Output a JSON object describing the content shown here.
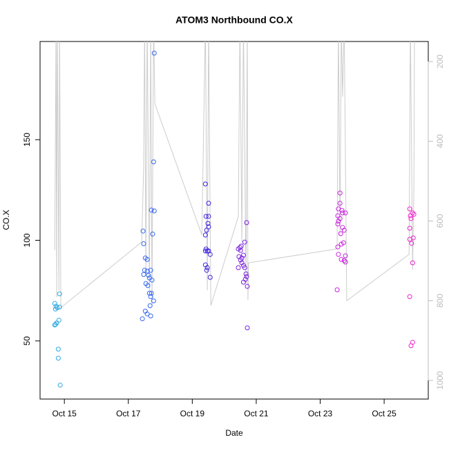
{
  "chart_data": {
    "type": "scatter",
    "title": "ATOM3 Northbound CO.X",
    "x_label": "Date",
    "y_label": "CO.X",
    "xlim": [
      14.24,
      26.38
    ],
    "xticks": [
      {
        "value": 15,
        "label": "Oct 15"
      },
      {
        "value": 17,
        "label": "Oct 17"
      },
      {
        "value": 19,
        "label": "Oct 19"
      },
      {
        "value": 21,
        "label": "Oct 21"
      },
      {
        "value": 23,
        "label": "Oct 23"
      },
      {
        "value": 25,
        "label": "Oct 25"
      }
    ],
    "ylim": [
      21.1,
      198.8
    ],
    "yticks": [
      50,
      100,
      150
    ],
    "y2lim": [
      1046.8,
      149.7
    ],
    "y2ticks": [
      200,
      400,
      600,
      800,
      1000
    ],
    "series": [
      {
        "color": "#2aa8e0",
        "x": [
          14.7,
          14.74,
          14.72,
          14.78,
          14.85,
          14.85,
          14.83,
          14.76,
          14.72,
          14.7,
          14.81,
          14.81,
          14.87
        ],
        "values": [
          68.6,
          67.2,
          65.8,
          66.5,
          66.8,
          73.4,
          60.3,
          58.9,
          58.2,
          57.9,
          45.9,
          41.4,
          28.0
        ]
      },
      {
        "color": "#3366ee",
        "x": [
          17.81,
          17.79,
          17.72,
          17.81,
          17.76,
          17.46,
          17.48,
          17.53,
          17.59,
          17.51,
          17.59,
          17.7,
          17.48,
          17.63,
          17.66,
          17.74,
          17.55,
          17.61,
          17.66,
          17.72,
          17.7,
          17.79,
          17.68,
          17.53,
          17.59,
          17.7,
          17.44
        ],
        "values": [
          193.0,
          139.0,
          115.0,
          114.6,
          103.1,
          104.6,
          98.3,
          91.2,
          90.5,
          85.1,
          84.7,
          85.1,
          83.0,
          82.6,
          81.3,
          80.2,
          78.5,
          77.5,
          73.7,
          73.7,
          72.0,
          69.9,
          67.5,
          64.8,
          63.4,
          62.4,
          61.0
        ]
      },
      {
        "color": "#3a22dd",
        "x": [
          19.41,
          19.51,
          19.43,
          19.51,
          19.49,
          19.51,
          19.45,
          19.41,
          19.43,
          19.41,
          19.47,
          19.51,
          19.56,
          19.41,
          19.47,
          19.45,
          19.56
        ],
        "values": [
          128.0,
          118.4,
          111.9,
          111.9,
          108.4,
          106.7,
          105.0,
          102.6,
          95.7,
          94.7,
          94.7,
          94.7,
          93.0,
          87.8,
          86.4,
          85.1,
          81.6
        ]
      },
      {
        "color": "#7a22dd",
        "x": [
          20.7,
          20.64,
          20.53,
          20.49,
          20.44,
          20.51,
          20.6,
          20.46,
          20.55,
          20.51,
          20.55,
          20.6,
          20.64,
          20.44,
          20.68,
          20.7,
          20.66,
          20.6,
          20.72,
          20.72
        ],
        "values": [
          108.8,
          99.1,
          97.1,
          96.4,
          95.7,
          95.0,
          92.6,
          91.9,
          91.2,
          90.2,
          88.8,
          87.5,
          86.4,
          86.4,
          83.3,
          82.0,
          80.6,
          79.2,
          77.1,
          56.5
        ]
      },
      {
        "color": "#c822dd",
        "x": [
          23.62,
          23.62,
          23.57,
          23.68,
          23.79,
          23.7,
          23.55,
          23.62,
          23.57,
          23.55,
          23.7,
          23.75,
          23.64,
          23.73,
          23.66,
          23.55,
          23.57,
          23.79,
          23.66,
          23.75,
          23.79,
          23.53
        ],
        "values": [
          123.5,
          118.4,
          115.6,
          114.9,
          113.6,
          113.6,
          112.2,
          110.8,
          109.5,
          108.1,
          106.4,
          105.0,
          103.3,
          98.8,
          98.1,
          96.7,
          93.0,
          92.3,
          90.5,
          89.9,
          89.2,
          75.4
        ]
      },
      {
        "color": "#ee22cc",
        "x": [
          25.8,
          25.89,
          25.82,
          25.93,
          25.84,
          25.8,
          25.91,
          25.8,
          25.86,
          25.89,
          25.8,
          25.89,
          25.84
        ],
        "values": [
          115.6,
          113.6,
          112.2,
          112.9,
          110.8,
          106.0,
          101.2,
          100.5,
          98.5,
          88.8,
          72.0,
          49.3,
          47.6
        ]
      },
      {
        "type": "line",
        "axis": "y2",
        "color": "#cccccc",
        "x": [
          14.7,
          14.74,
          14.76,
          14.78,
          14.83,
          14.85,
          14.89,
          17.42,
          17.48,
          17.51,
          17.55,
          17.59,
          17.66,
          17.7,
          17.74,
          17.79,
          17.83,
          19.3,
          19.41,
          19.47,
          19.51,
          19.58,
          20.44,
          20.49,
          20.55,
          20.6,
          20.68,
          20.72,
          20.74,
          20.76,
          23.53,
          23.57,
          23.62,
          23.66,
          23.7,
          23.75,
          23.83,
          25.78,
          25.82,
          25.89,
          25.93,
          25.95
        ],
        "values": [
          673.6,
          100,
          791,
          100,
          774,
          100,
          817.5,
          652.7,
          462,
          100,
          722,
          100,
          774,
          100,
          809,
          100,
          306,
          635,
          100,
          774,
          100,
          812,
          589,
          100,
          653,
          100,
          757,
          100,
          798,
          705,
          670,
          100,
          635,
          100,
          288,
          100,
          800,
          684,
          100,
          722,
          510,
          100
        ]
      }
    ]
  }
}
